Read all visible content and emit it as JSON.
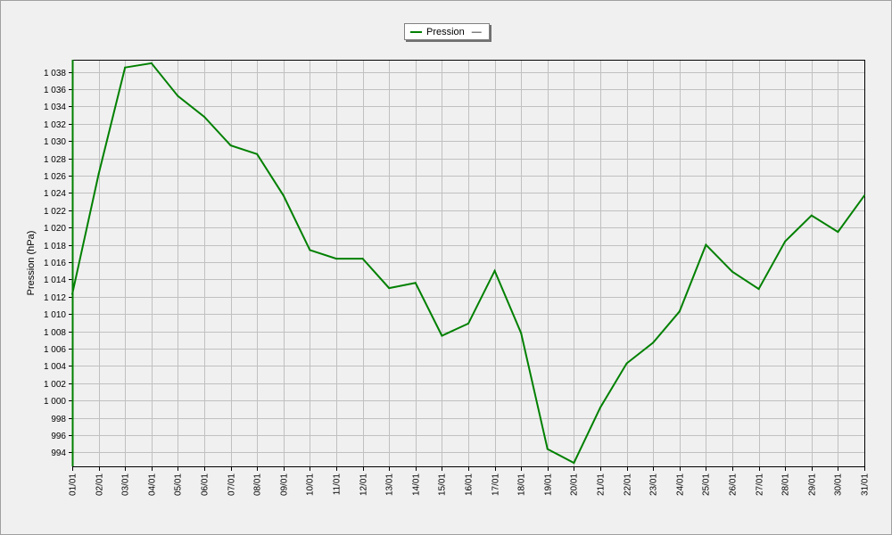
{
  "chart_data": {
    "type": "line",
    "title": "",
    "xlabel": "",
    "ylabel": "Pression (hPa)",
    "ylim": [
      992.4,
      1039.4
    ],
    "yticks": [
      994,
      996,
      998,
      1000,
      1002,
      1004,
      1006,
      1008,
      1010,
      1012,
      1014,
      1016,
      1018,
      1020,
      1022,
      1024,
      1026,
      1028,
      1030,
      1032,
      1034,
      1036,
      1038
    ],
    "ytick_labels": [
      "994",
      "996",
      "998",
      "1 000",
      "1 002",
      "1 004",
      "1 006",
      "1 008",
      "1 010",
      "1 012",
      "1 014",
      "1 016",
      "1 018",
      "1 020",
      "1 022",
      "1 024",
      "1 026",
      "1 028",
      "1 030",
      "1 032",
      "1 034",
      "1 036",
      "1 038"
    ],
    "categories": [
      "01/01",
      "02/01",
      "03/01",
      "04/01",
      "05/01",
      "06/01",
      "07/01",
      "08/01",
      "09/01",
      "10/01",
      "11/01",
      "12/01",
      "13/01",
      "14/01",
      "15/01",
      "16/01",
      "17/01",
      "18/01",
      "19/01",
      "20/01",
      "21/01",
      "22/01",
      "23/01",
      "24/01",
      "25/01",
      "26/01",
      "27/01",
      "28/01",
      "29/01",
      "30/01",
      "31/01"
    ],
    "series": [
      {
        "name": "Pression",
        "color": "#008000",
        "values": [
          1012.3,
          1026.2,
          1038.5,
          1039.0,
          1035.2,
          1032.8,
          1029.5,
          1028.5,
          1023.7,
          1017.4,
          1016.4,
          1016.4,
          1013.0,
          1013.6,
          1007.5,
          1008.9,
          1015.0,
          1007.8,
          994.4,
          992.8,
          999.2,
          1004.3,
          1006.7,
          1010.3,
          1018.0,
          1014.9,
          1012.9,
          1018.4,
          1021.4,
          1019.5,
          1023.7
        ]
      }
    ],
    "grid": true,
    "legend_position": "top-center",
    "legend_suffix": "—"
  }
}
